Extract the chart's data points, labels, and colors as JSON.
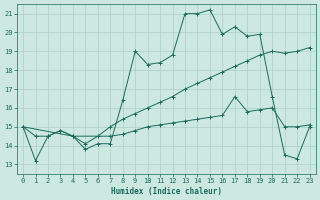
{
  "title": "",
  "xlabel": "Humidex (Indice chaleur)",
  "xlim": [
    -0.5,
    23.5
  ],
  "ylim": [
    12.5,
    21.5
  ],
  "yticks": [
    13,
    14,
    15,
    16,
    17,
    18,
    19,
    20,
    21
  ],
  "xticks": [
    0,
    1,
    2,
    3,
    4,
    5,
    6,
    7,
    8,
    9,
    10,
    11,
    12,
    13,
    14,
    15,
    16,
    17,
    18,
    19,
    20,
    21,
    22,
    23
  ],
  "bg_color": "#cce8e0",
  "grid_color": "#aacfc8",
  "line_color": "#1a6b5a",
  "line1_x": [
    0,
    1,
    2,
    3,
    4,
    5,
    6,
    7,
    8,
    9,
    10,
    11,
    12,
    13,
    14,
    15,
    16,
    17,
    18,
    19,
    20,
    21,
    22,
    23
  ],
  "line1_y": [
    15.0,
    13.2,
    14.5,
    14.8,
    14.5,
    13.8,
    14.1,
    14.1,
    16.4,
    19.0,
    18.3,
    18.4,
    18.8,
    21.0,
    21.0,
    21.2,
    19.9,
    20.3,
    19.8,
    19.9,
    16.6,
    13.5,
    13.3,
    15.0
  ],
  "line2_x": [
    0,
    1,
    2,
    3,
    4,
    5,
    6,
    7,
    8,
    9,
    10,
    11,
    12,
    13,
    14,
    15,
    16,
    17,
    18,
    19,
    20,
    21,
    22,
    23
  ],
  "line2_y": [
    15.0,
    14.5,
    14.5,
    14.8,
    14.5,
    14.1,
    14.5,
    15.0,
    15.4,
    15.7,
    16.0,
    16.3,
    16.6,
    17.0,
    17.3,
    17.6,
    17.9,
    18.2,
    18.5,
    18.8,
    19.0,
    18.9,
    19.0,
    19.2
  ],
  "line3_x": [
    0,
    4,
    7,
    8,
    9,
    10,
    11,
    12,
    13,
    14,
    15,
    16,
    17,
    18,
    19,
    20,
    21,
    22,
    23
  ],
  "line3_y": [
    15.0,
    14.5,
    14.5,
    14.6,
    14.8,
    15.0,
    15.1,
    15.2,
    15.3,
    15.4,
    15.5,
    15.6,
    16.6,
    15.8,
    15.9,
    16.0,
    15.0,
    15.0,
    15.1
  ]
}
